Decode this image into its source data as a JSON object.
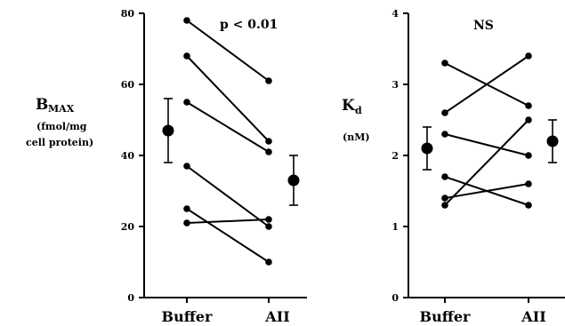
{
  "chart_data": [
    {
      "type": "scatter",
      "panel": "left",
      "categories": [
        "Buffer",
        "AII"
      ],
      "ylabel_main": "B",
      "ylabel_sub": "MAX",
      "ylabel_unit_line1": "(fmol/mg",
      "ylabel_unit_line2": "cell protein)",
      "annotation": "p < 0.01",
      "ylim": [
        0,
        80
      ],
      "yticks": [
        "0",
        "20",
        "40",
        "60",
        "80"
      ],
      "pairs": [
        [
          78,
          61
        ],
        [
          68,
          44
        ],
        [
          55,
          41
        ],
        [
          37,
          20
        ],
        [
          25,
          10
        ],
        [
          21,
          22
        ]
      ],
      "mean": {
        "Buffer": {
          "value": 47,
          "low": 38,
          "high": 56
        },
        "AII": {
          "value": 33,
          "low": 26,
          "high": 40
        }
      },
      "grid": false
    },
    {
      "type": "scatter",
      "panel": "right",
      "categories": [
        "Buffer",
        "AII"
      ],
      "ylabel_main": "K",
      "ylabel_sub": "d",
      "ylabel_unit_line1": "(nM)",
      "annotation": "NS",
      "ylim": [
        0,
        4
      ],
      "yticks": [
        "0",
        "1",
        "2",
        "3",
        "4"
      ],
      "pairs": [
        [
          3.3,
          2.7
        ],
        [
          2.6,
          3.4
        ],
        [
          2.3,
          2.0
        ],
        [
          1.7,
          1.3
        ],
        [
          1.4,
          1.6
        ],
        [
          1.3,
          2.5
        ]
      ],
      "mean": {
        "Buffer": {
          "value": 2.1,
          "low": 1.8,
          "high": 2.4
        },
        "AII": {
          "value": 2.2,
          "low": 1.9,
          "high": 2.5
        }
      },
      "grid": false
    }
  ]
}
